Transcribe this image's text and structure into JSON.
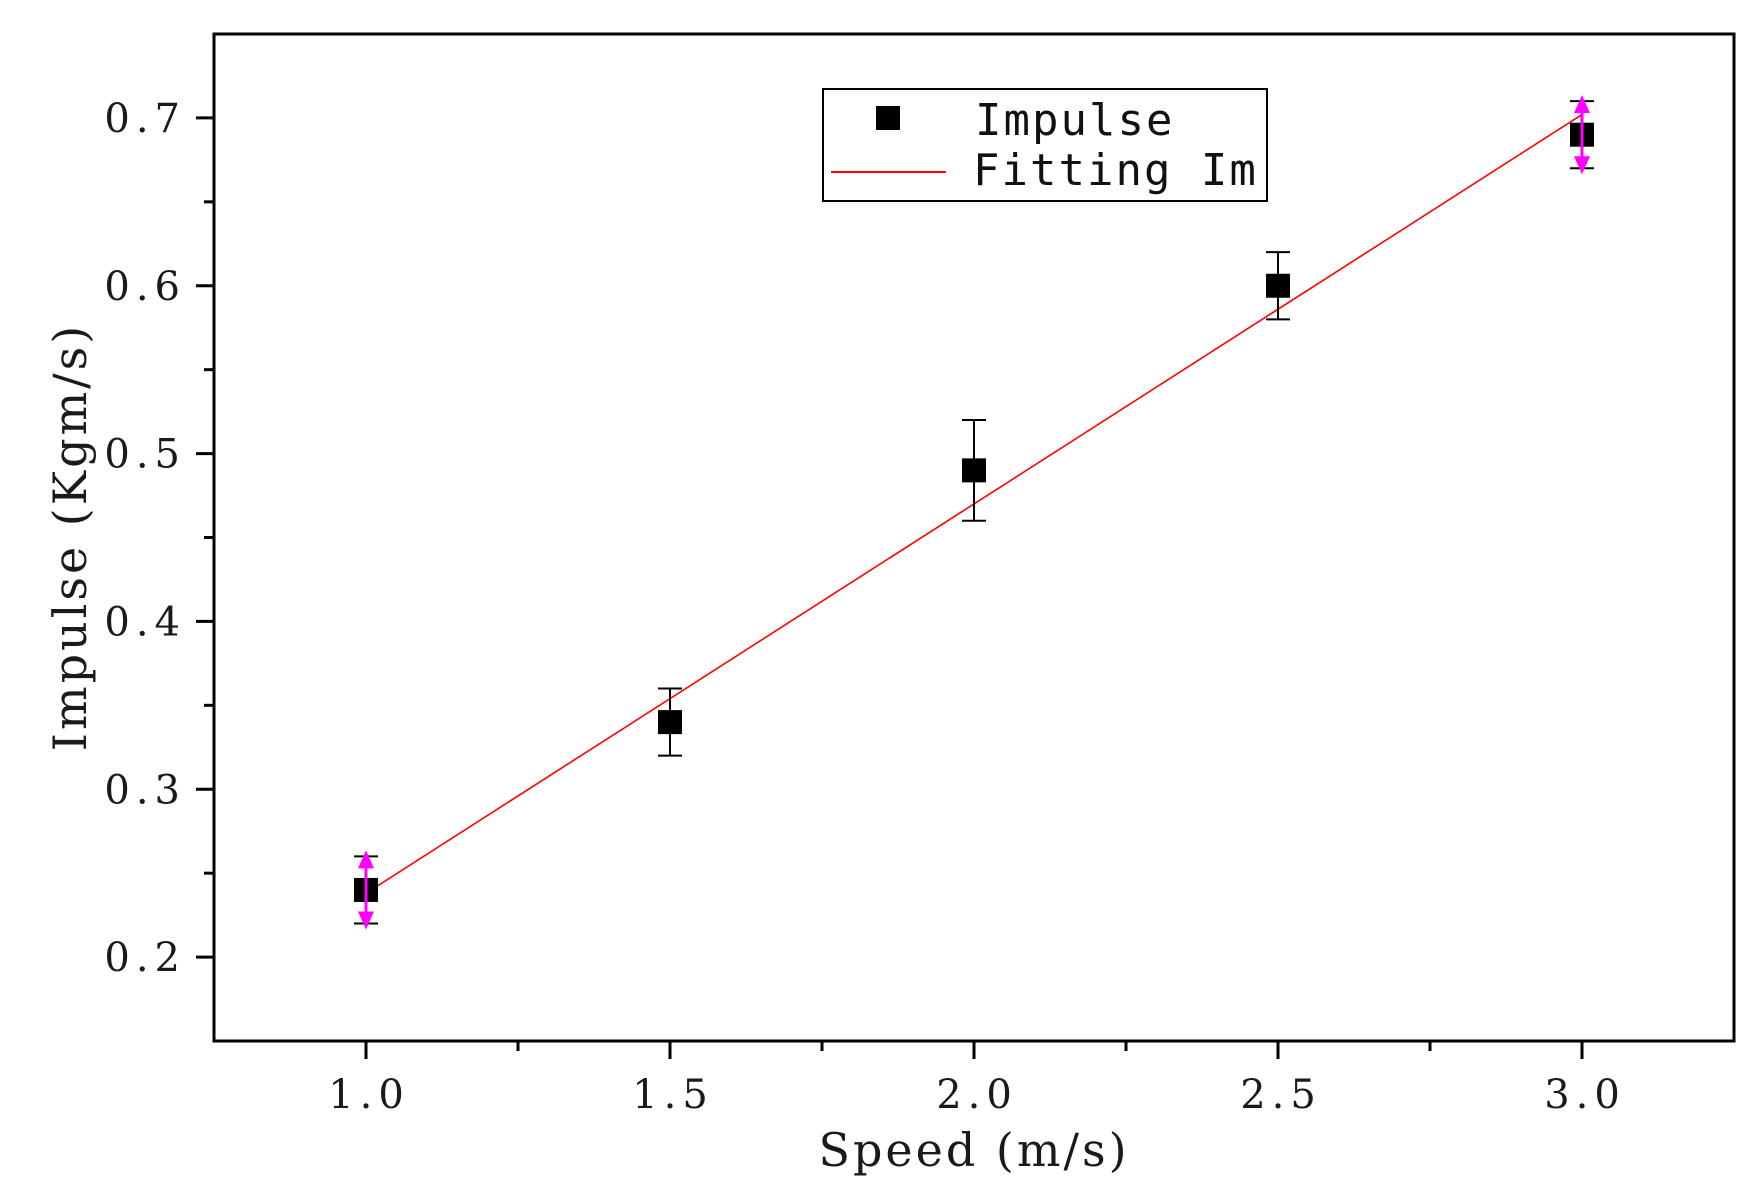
{
  "chart_data": {
    "type": "scatter",
    "title": "",
    "xlabel": "Speed (m/s)",
    "ylabel": "Impulse (Kgm/s)",
    "xlim": [
      0.75,
      3.25
    ],
    "ylim": [
      0.15,
      0.75
    ],
    "x_ticks": [
      1.0,
      1.5,
      2.0,
      2.5,
      3.0
    ],
    "x_tick_labels": [
      "1.0",
      "1.5",
      "2.0",
      "2.5",
      "3.0"
    ],
    "y_ticks": [
      0.2,
      0.3,
      0.4,
      0.5,
      0.6,
      0.7
    ],
    "y_tick_labels": [
      "0.2",
      "0.3",
      "0.4",
      "0.5",
      "0.6",
      "0.7"
    ],
    "grid": false,
    "legend_position": "top-right",
    "series": [
      {
        "name": "Impulse",
        "kind": "scatter",
        "marker": "square",
        "color": "#000000",
        "x": [
          1.0,
          1.5,
          2.0,
          2.5,
          3.0
        ],
        "y": [
          0.24,
          0.34,
          0.49,
          0.6,
          0.69
        ],
        "error_low": [
          0.22,
          0.32,
          0.46,
          0.58,
          0.67
        ],
        "error_high": [
          0.26,
          0.36,
          0.52,
          0.62,
          0.71
        ],
        "highlight_color": "#ff00ff",
        "highlighted_points": [
          0,
          4
        ]
      },
      {
        "name": "Fitting Im",
        "kind": "line",
        "color": "#ff0000",
        "x": [
          1.0,
          3.0
        ],
        "y": [
          0.238,
          0.702
        ]
      }
    ]
  }
}
